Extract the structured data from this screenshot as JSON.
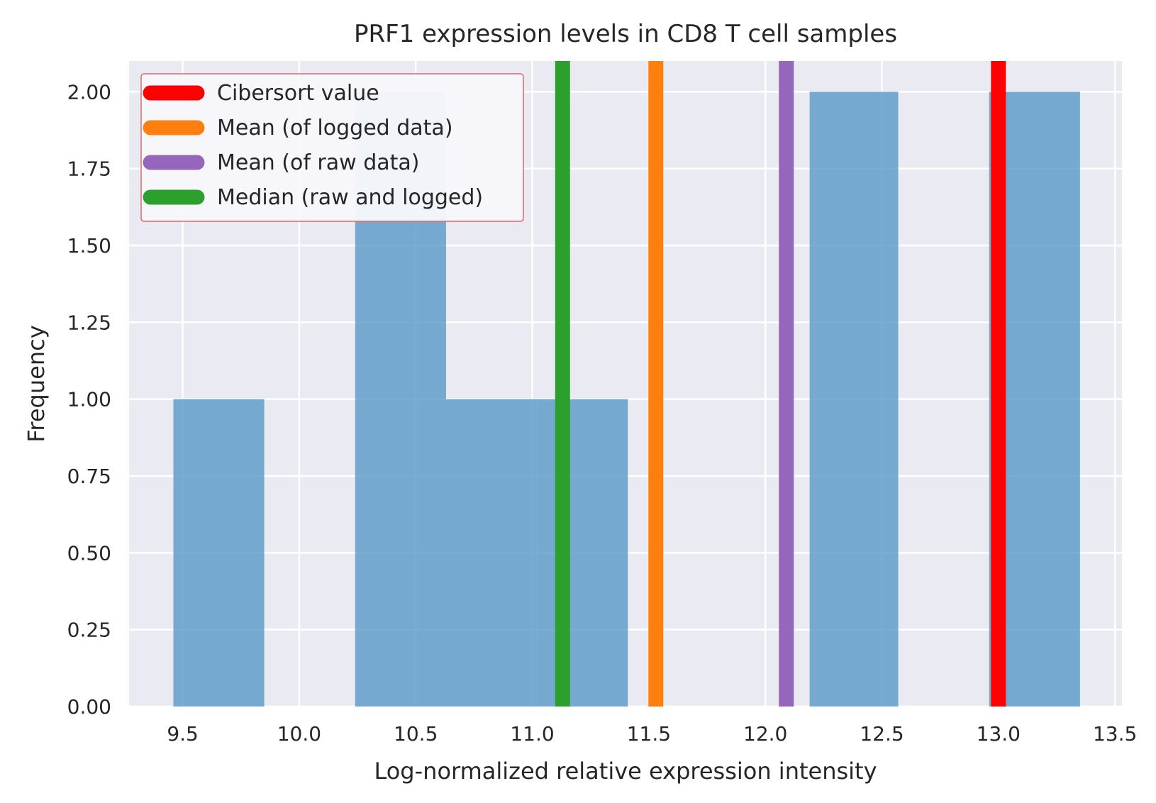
{
  "chart_data": {
    "type": "bar",
    "title": "PRF1 expression levels in CD8 T cell samples",
    "xlabel": "Log-normalized relative expression intensity",
    "ylabel": "Frequency",
    "xlim": [
      9.27,
      13.53
    ],
    "ylim": [
      0,
      2.1
    ],
    "x_ticks": [
      "9.5",
      "10.0",
      "10.5",
      "11.0",
      "11.5",
      "12.0",
      "12.5",
      "13.0",
      "13.5"
    ],
    "y_ticks": [
      "0.00",
      "0.25",
      "0.50",
      "0.75",
      "1.00",
      "1.25",
      "1.50",
      "1.75",
      "2.00"
    ],
    "grid": true,
    "legend_position": "top-left",
    "bar_color": "#5b9bc8",
    "histogram_bins": [
      {
        "x0": 9.46,
        "x1": 9.85,
        "count": 1
      },
      {
        "x0": 9.85,
        "x1": 10.24,
        "count": 0
      },
      {
        "x0": 10.24,
        "x1": 10.63,
        "count": 2
      },
      {
        "x0": 10.63,
        "x1": 11.02,
        "count": 1
      },
      {
        "x0": 11.02,
        "x1": 11.41,
        "count": 1
      },
      {
        "x0": 11.41,
        "x1": 11.8,
        "count": 0
      },
      {
        "x0": 11.8,
        "x1": 12.19,
        "count": 0
      },
      {
        "x0": 12.19,
        "x1": 12.57,
        "count": 2
      },
      {
        "x0": 12.57,
        "x1": 12.96,
        "count": 0
      },
      {
        "x0": 12.96,
        "x1": 13.35,
        "count": 2
      }
    ],
    "vertical_lines": [
      {
        "name": "Cibersort value",
        "x": 13.0,
        "color": "#ff0000"
      },
      {
        "name": "Mean (of logged data)",
        "x": 11.53,
        "color": "#ff7f0e"
      },
      {
        "name": "Mean (of raw data)",
        "x": 12.09,
        "color": "#9467bd"
      },
      {
        "name": "Median (raw and logged)",
        "x": 11.13,
        "color": "#2ca02c"
      }
    ]
  }
}
